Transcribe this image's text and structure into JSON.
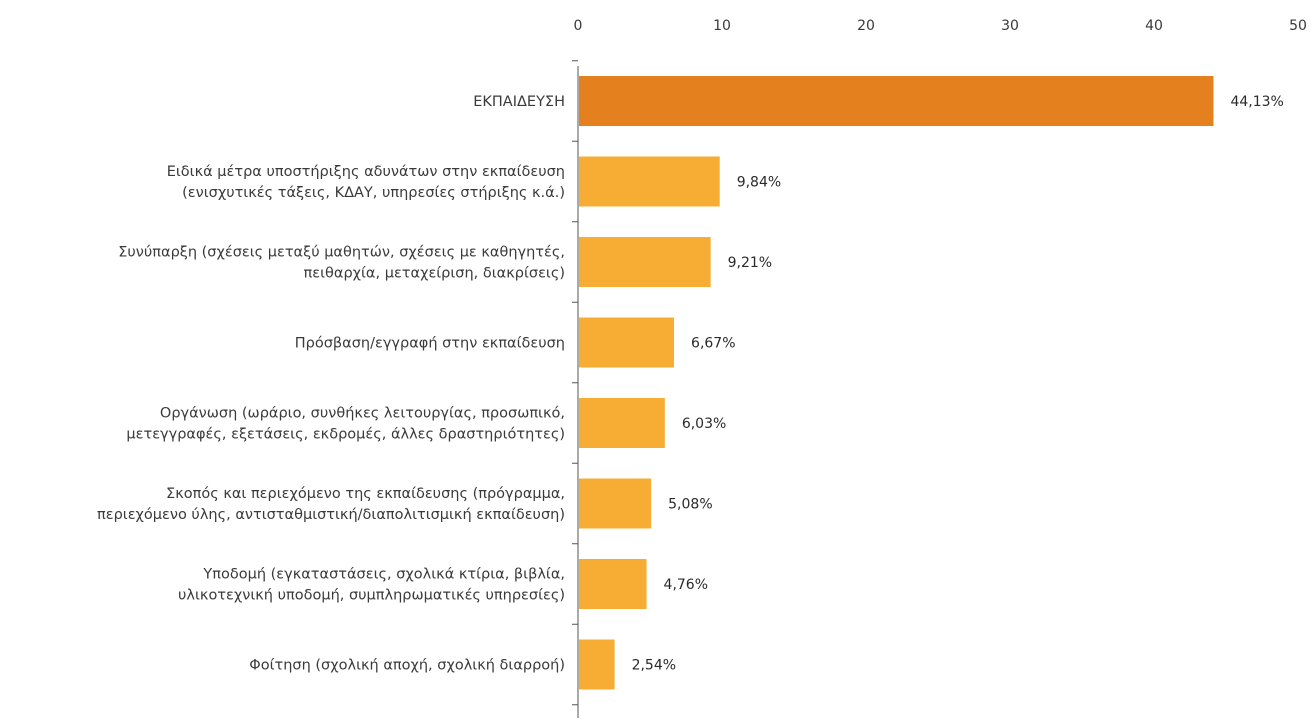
{
  "chart_data": {
    "type": "bar",
    "orientation": "horizontal",
    "xlim": [
      0,
      50
    ],
    "x_ticks": [
      0,
      10,
      20,
      30,
      40,
      50
    ],
    "x_axis_position": "top",
    "grid": false,
    "legend": "none",
    "categories": [
      [
        "ΕΚΠΑΙΔΕΥΣΗ"
      ],
      [
        "Ειδικά μέτρα υποστήριξης αδυνάτων στην εκπαίδευση",
        "(ενισχυτικές τάξεις, ΚΔΑΥ, υπηρεσίες στήριξης κ.ά.)"
      ],
      [
        "Συνύπαρξη (σχέσεις μεταξύ μαθητών, σχέσεις με καθηγητές,",
        "πειθαρχία, μεταχείριση, διακρίσεις)"
      ],
      [
        "Πρόσβαση/εγγραφή στην εκπαίδευση"
      ],
      [
        "Οργάνωση (ωράριο, συνθήκες λειτουργίας, προσωπικό,",
        "μετεγγραφές, εξετάσεις, εκδρομές, άλλες δραστηριότητες)"
      ],
      [
        "Σκοπός και περιεχόμενο της εκπαίδευσης (πρόγραμμα,",
        "περιεχόμενο ύλης, αντισταθμιστική/διαπολιτισμική εκπαίδευση)"
      ],
      [
        "Υποδομή (εγκαταστάσεις, σχολικά κτίρια, βιβλία,",
        "υλικοτεχνική υποδομή, συμπληρωματικές υπηρεσίες)"
      ],
      [
        "Φοίτηση (σχολική αποχή, σχολική διαρροή)"
      ]
    ],
    "values": [
      44.13,
      9.84,
      9.21,
      6.67,
      6.03,
      5.08,
      4.76,
      2.54
    ],
    "value_labels": [
      "44,13%",
      "9,84%",
      "9,21%",
      "6,67%",
      "6,03%",
      "5,08%",
      "4,76%",
      "2,54%"
    ],
    "colors": {
      "highlight": "#e5801f",
      "default": "#f7ac33"
    },
    "highlight_index": 0
  }
}
